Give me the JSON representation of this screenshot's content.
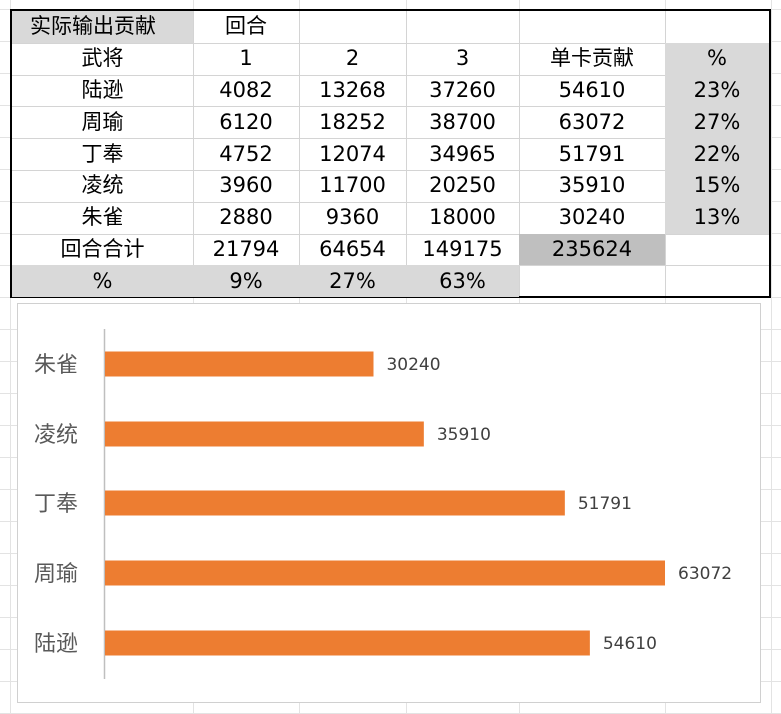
{
  "table": {
    "header_row": [
      "实际输出贡献",
      "回合",
      "",
      "",
      "",
      ""
    ],
    "column_headers": [
      "武将",
      "1",
      "2",
      "3",
      "单卡贡献",
      "%"
    ],
    "rows": [
      [
        "陆逊",
        "4082",
        "13268",
        "37260",
        "54610",
        "23%"
      ],
      [
        "周瑜",
        "6120",
        "18252",
        "38700",
        "63072",
        "27%"
      ],
      [
        "丁奉",
        "4752",
        "12074",
        "34965",
        "51791",
        "22%"
      ],
      [
        "凌统",
        "3960",
        "11700",
        "20250",
        "35910",
        "15%"
      ],
      [
        "朱雀",
        "2880",
        "9360",
        "18000",
        "30240",
        "13%"
      ]
    ],
    "total_row": [
      "回合合计",
      "21794",
      "64654",
      "149175",
      "235624",
      ""
    ],
    "percent_row": [
      "%",
      "9%",
      "27%",
      "63%",
      "",
      ""
    ]
  },
  "chart_data": {
    "type": "bar",
    "orientation": "horizontal",
    "categories": [
      "朱雀",
      "凌统",
      "丁奉",
      "周瑜",
      "陆逊"
    ],
    "values": [
      30240,
      35910,
      51791,
      63072,
      54610
    ],
    "xlim": [
      0,
      66000
    ],
    "grid": false,
    "legend": "none",
    "bar_color": "#ed7d31"
  },
  "colors": {
    "header_grey": "#d9d9d9",
    "total_grey": "#bfbfbf",
    "bar": "#ed7d31"
  }
}
